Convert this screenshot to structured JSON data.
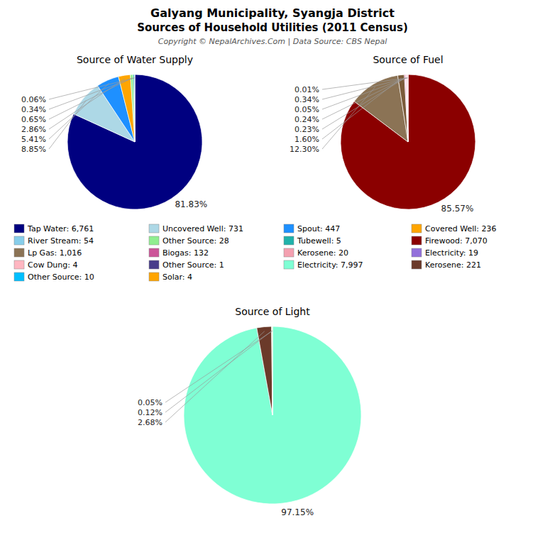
{
  "title": "Galyang Municipality, Syangja District",
  "subtitle": "Sources of Household Utilities (2011 Census)",
  "annotations": [
    "Copyright © NepalArchives.Com | Data Source: CBS Nepal"
  ],
  "legend_columns": [
    [
      {
        "label": "Tap Water: 6,761",
        "color": "#000080"
      },
      {
        "label": "River Stream: 54",
        "color": "#87CEEB"
      },
      {
        "label": "Lp Gas: 1,016",
        "color": "#8B7355"
      },
      {
        "label": "Cow Dung: 4",
        "color": "#FFB6C1"
      },
      {
        "label": "Other Source: 10",
        "color": "#00BFFF"
      }
    ],
    [
      {
        "label": "Uncovered Well: 731",
        "color": "#ADD8E6"
      },
      {
        "label": "Other Source: 28",
        "color": "#90EE90"
      },
      {
        "label": "Biogas: 132",
        "color": "#CC5599"
      },
      {
        "label": "Other Source: 1",
        "color": "#483D8B"
      },
      {
        "label": "Solar: 4",
        "color": "#FFA500"
      }
    ],
    [
      {
        "label": "Spout: 447",
        "color": "#1E90FF"
      },
      {
        "label": "Tubewell: 5",
        "color": "#20B2AA"
      },
      {
        "label": "Kerosene: 20",
        "color": "#F4A0B0"
      },
      {
        "label": "Electricity: 7,997",
        "color": "#7FFFD4"
      }
    ],
    [
      {
        "label": "Covered Well: 236",
        "color": "#FFA500"
      },
      {
        "label": "Firewood: 7,070",
        "color": "#8B0000"
      },
      {
        "label": "Electricity: 19",
        "color": "#9370DB"
      },
      {
        "label": "Kerosene: 221",
        "color": "#6B3A2A"
      }
    ]
  ],
  "chart_data": [
    {
      "type": "pie",
      "title": "Source of Water Supply",
      "values": [
        81.83,
        8.85,
        5.41,
        2.86,
        0.65,
        0.34,
        0.06
      ],
      "value_labels": [
        "81.83%",
        "8.85%",
        "5.41%",
        "2.86%",
        "0.65%",
        "0.34%",
        "0.06%"
      ],
      "colors": [
        "#000080",
        "#ADD8E6",
        "#1E90FF",
        "#FFA500",
        "#90EE90",
        "#20B2AA",
        "#E0FFFF"
      ],
      "data_labels": true
    },
    {
      "type": "pie",
      "title": "Source of Fuel",
      "values": [
        85.57,
        12.3,
        1.6,
        0.23,
        0.24,
        0.05,
        0.34,
        0.01
      ],
      "value_labels": [
        "85.57%",
        "12.30%",
        "1.60%",
        "0.23%",
        "0.24%",
        "0.05%",
        "0.34%",
        "0.01%"
      ],
      "colors": [
        "#8B0000",
        "#8B7355",
        "#7B5B3A",
        "#CC5599",
        "#F4A0B0",
        "#9370DB",
        "#FFB6C1",
        "#483D8B"
      ],
      "data_labels": true
    },
    {
      "type": "pie",
      "title": "Source of Light",
      "values": [
        97.15,
        2.68,
        0.12,
        0.05
      ],
      "value_labels": [
        "97.15%",
        "2.68%",
        "0.12%",
        "0.05%"
      ],
      "colors": [
        "#7FFFD4",
        "#6B3A2A",
        "#87CEEB",
        "#FFD700"
      ],
      "data_labels": true
    }
  ]
}
